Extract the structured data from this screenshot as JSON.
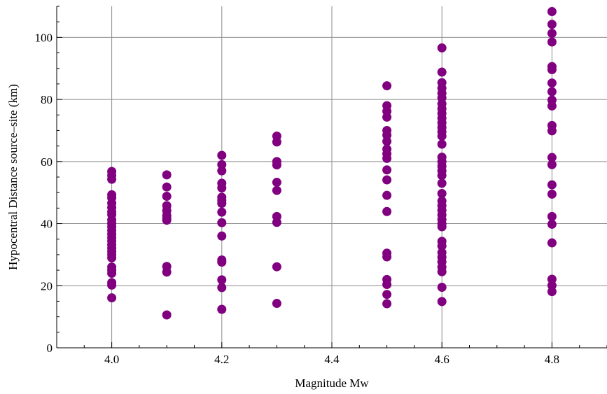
{
  "chart_data": {
    "type": "scatter",
    "title": "",
    "xlabel": "Magnitude Mw",
    "ylabel": "Hypocentral Distance source–site (km)",
    "xlim": [
      3.9,
      4.9
    ],
    "ylim": [
      0,
      110
    ],
    "xticks": [
      4.0,
      4.2,
      4.4,
      4.6,
      4.8
    ],
    "xtick_labels": [
      "4.0",
      "4.2",
      "4.4",
      "4.6",
      "4.8"
    ],
    "yticks": [
      0,
      20,
      40,
      60,
      80,
      100
    ],
    "ytick_labels": [
      "0",
      "20",
      "40",
      "60",
      "80",
      "100"
    ],
    "grid": true,
    "point_color": "#800080",
    "series": [
      {
        "points": [
          [
            4.0,
            56.8
          ],
          [
            4.0,
            55.5
          ],
          [
            4.0,
            54.3
          ],
          [
            4.0,
            49.3
          ],
          [
            4.0,
            48.3
          ],
          [
            4.0,
            46.6
          ],
          [
            4.0,
            45.2
          ],
          [
            4.0,
            43.8
          ],
          [
            4.0,
            42.9
          ],
          [
            4.0,
            41.2
          ],
          [
            4.0,
            40.1
          ],
          [
            4.0,
            39.0
          ],
          [
            4.0,
            37.8
          ],
          [
            4.0,
            36.6
          ],
          [
            4.0,
            35.5
          ],
          [
            4.0,
            34.4
          ],
          [
            4.0,
            33.2
          ],
          [
            4.0,
            32.1
          ],
          [
            4.0,
            31.0
          ],
          [
            4.0,
            30.0
          ],
          [
            4.0,
            29.0
          ],
          [
            4.0,
            26.0
          ],
          [
            4.0,
            25.0
          ],
          [
            4.0,
            24.0
          ],
          [
            4.0,
            21.0
          ],
          [
            4.0,
            20.2
          ],
          [
            4.0,
            16.1
          ],
          [
            4.1,
            55.7
          ],
          [
            4.1,
            51.8
          ],
          [
            4.1,
            48.8
          ],
          [
            4.1,
            45.8
          ],
          [
            4.1,
            44.2
          ],
          [
            4.1,
            42.6
          ],
          [
            4.1,
            41.7
          ],
          [
            4.1,
            41.1
          ],
          [
            4.1,
            26.2
          ],
          [
            4.1,
            24.4
          ],
          [
            4.1,
            10.6
          ],
          [
            4.2,
            62.0
          ],
          [
            4.2,
            59.0
          ],
          [
            4.2,
            57.0
          ],
          [
            4.2,
            53.0
          ],
          [
            4.2,
            51.5
          ],
          [
            4.2,
            48.5
          ],
          [
            4.2,
            47.5
          ],
          [
            4.2,
            46.5
          ],
          [
            4.2,
            43.7
          ],
          [
            4.2,
            40.3
          ],
          [
            4.2,
            36.0
          ],
          [
            4.2,
            28.3
          ],
          [
            4.2,
            27.6
          ],
          [
            4.2,
            21.9
          ],
          [
            4.2,
            19.4
          ],
          [
            4.2,
            12.4
          ],
          [
            4.3,
            68.2
          ],
          [
            4.3,
            66.3
          ],
          [
            4.3,
            60.0
          ],
          [
            4.3,
            58.9
          ],
          [
            4.3,
            53.3
          ],
          [
            4.3,
            50.7
          ],
          [
            4.3,
            42.3
          ],
          [
            4.3,
            40.4
          ],
          [
            4.3,
            26.1
          ],
          [
            4.3,
            14.3
          ],
          [
            4.5,
            84.4
          ],
          [
            4.5,
            78.0
          ],
          [
            4.5,
            76.2
          ],
          [
            4.5,
            74.3
          ],
          [
            4.5,
            70.0
          ],
          [
            4.5,
            68.5
          ],
          [
            4.5,
            66.5
          ],
          [
            4.5,
            64.0
          ],
          [
            4.5,
            62.5
          ],
          [
            4.5,
            61.0
          ],
          [
            4.5,
            57.3
          ],
          [
            4.5,
            54.1
          ],
          [
            4.5,
            49.1
          ],
          [
            4.5,
            43.9
          ],
          [
            4.5,
            30.5
          ],
          [
            4.5,
            29.3
          ],
          [
            4.5,
            22.0
          ],
          [
            4.5,
            20.4
          ],
          [
            4.5,
            17.2
          ],
          [
            4.5,
            14.2
          ],
          [
            4.6,
            96.6
          ],
          [
            4.6,
            88.8
          ],
          [
            4.6,
            85.4
          ],
          [
            4.6,
            83.6
          ],
          [
            4.6,
            82.0
          ],
          [
            4.6,
            80.5
          ],
          [
            4.6,
            78.6
          ],
          [
            4.6,
            77.0
          ],
          [
            4.6,
            75.5
          ],
          [
            4.6,
            74.0
          ],
          [
            4.6,
            72.5
          ],
          [
            4.6,
            71.0
          ],
          [
            4.6,
            69.6
          ],
          [
            4.6,
            68.2
          ],
          [
            4.6,
            65.6
          ],
          [
            4.6,
            61.4
          ],
          [
            4.6,
            60.0
          ],
          [
            4.6,
            58.5
          ],
          [
            4.6,
            57.0
          ],
          [
            4.6,
            55.5
          ],
          [
            4.6,
            53.0
          ],
          [
            4.6,
            49.7
          ],
          [
            4.6,
            47.3
          ],
          [
            4.6,
            45.8
          ],
          [
            4.6,
            44.3
          ],
          [
            4.6,
            42.8
          ],
          [
            4.6,
            41.3
          ],
          [
            4.6,
            40.0
          ],
          [
            4.6,
            39.0
          ],
          [
            4.6,
            34.3
          ],
          [
            4.6,
            32.8
          ],
          [
            4.6,
            30.7
          ],
          [
            4.6,
            29.2
          ],
          [
            4.6,
            27.7
          ],
          [
            4.6,
            26.0
          ],
          [
            4.6,
            24.5
          ],
          [
            4.6,
            19.5
          ],
          [
            4.6,
            14.9
          ],
          [
            4.8,
            108.3
          ],
          [
            4.8,
            104.2
          ],
          [
            4.8,
            101.3
          ],
          [
            4.8,
            98.5
          ],
          [
            4.8,
            90.6
          ],
          [
            4.8,
            89.6
          ],
          [
            4.8,
            85.3
          ],
          [
            4.8,
            82.5
          ],
          [
            4.8,
            79.8
          ],
          [
            4.8,
            77.9
          ],
          [
            4.8,
            71.6
          ],
          [
            4.8,
            69.9
          ],
          [
            4.8,
            61.3
          ],
          [
            4.8,
            59.0
          ],
          [
            4.8,
            52.5
          ],
          [
            4.8,
            49.5
          ],
          [
            4.8,
            42.3
          ],
          [
            4.8,
            39.8
          ],
          [
            4.8,
            33.8
          ],
          [
            4.8,
            22.1
          ],
          [
            4.8,
            20.1
          ],
          [
            4.8,
            18.1
          ]
        ]
      }
    ]
  }
}
